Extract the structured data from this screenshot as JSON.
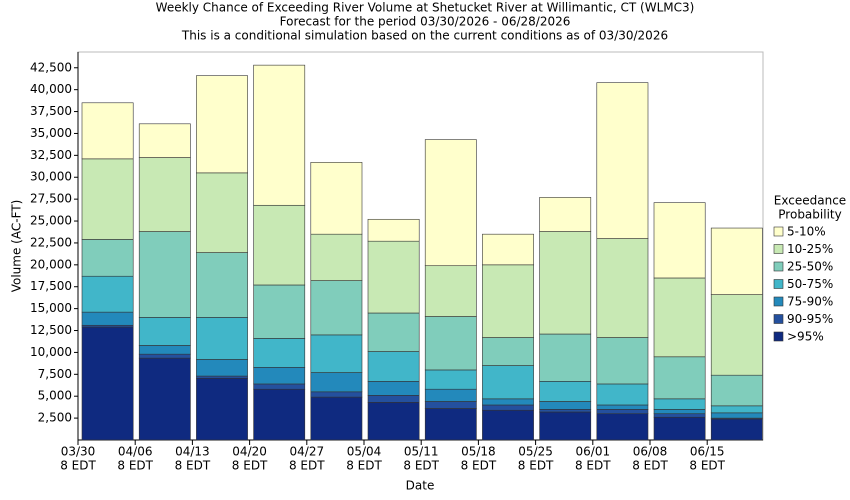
{
  "chart_data": {
    "type": "stacked-bar",
    "title": "Weekly Chance of Exceeding River Volume at Shetucket River at Willimantic, CT (WLMC3)",
    "subtitle": [
      "Forecast for the period 03/30/2026 - 06/28/2026",
      "This is a conditional simulation based on the current conditions as of 03/30/2026"
    ],
    "x_label": "Date",
    "y_label": "Volume (AC-FT)",
    "categories": [
      null,
      null,
      null,
      null,
      null,
      null,
      null,
      null,
      null,
      null,
      null,
      null
    ],
    "xtick_labels": [
      [
        "03/30",
        "8 EDT"
      ],
      [
        "04/06",
        "8 EDT"
      ],
      [
        "04/13",
        "8 EDT"
      ],
      [
        "04/20",
        "8 EDT"
      ],
      [
        "04/27",
        "8 EDT"
      ],
      [
        "05/04",
        "8 EDT"
      ],
      [
        "05/11",
        "8 EDT"
      ],
      [
        "05/18",
        "8 EDT"
      ],
      [
        "05/25",
        "8 EDT"
      ],
      [
        "06/01",
        "8 EDT"
      ],
      [
        "06/08",
        "8 EDT"
      ],
      [
        "06/15",
        "8 EDT"
      ]
    ],
    "legend_title": [
      "Exceedance",
      "Probability"
    ],
    "series": [
      {
        "name": ">95%",
        "color": "#0f2a80",
        "values": [
          12900,
          9350,
          7050,
          5800,
          4900,
          4300,
          3600,
          3400,
          3200,
          3000,
          2600,
          2400
        ]
      },
      {
        "name": "90-95%",
        "color": "#24509e",
        "values": [
          200,
          450,
          250,
          600,
          600,
          800,
          800,
          600,
          300,
          500,
          400,
          100
        ]
      },
      {
        "name": "75-90%",
        "color": "#2389bb",
        "values": [
          1500,
          1000,
          1900,
          1900,
          2200,
          1600,
          1400,
          700,
          900,
          500,
          500,
          600
        ]
      },
      {
        "name": "50-75%",
        "color": "#41b6c9",
        "values": [
          4100,
          3200,
          4800,
          3300,
          4300,
          3400,
          2200,
          3800,
          2300,
          2400,
          1200,
          800
        ]
      },
      {
        "name": "25-50%",
        "color": "#80cdbb",
        "values": [
          4200,
          9800,
          7400,
          6100,
          6200,
          4400,
          6100,
          3200,
          5400,
          5300,
          4800,
          3500
        ]
      },
      {
        "name": "10-25%",
        "color": "#c8e9b4",
        "values": [
          9200,
          8450,
          9100,
          9100,
          5300,
          8200,
          5800,
          8300,
          11700,
          11300,
          9000,
          9200
        ]
      },
      {
        "name": "5-10%",
        "color": "#ffffcc",
        "values": [
          6400,
          3850,
          11100,
          16000,
          8200,
          2500,
          14400,
          3500,
          3900,
          17800,
          8600,
          7600
        ]
      }
    ],
    "ylim": [
      0,
      44300
    ],
    "yticks": [
      {
        "value": 2500,
        "label": "2,500"
      },
      {
        "value": 5000,
        "label": "5,000"
      },
      {
        "value": 7500,
        "label": "7,500"
      },
      {
        "value": 10000,
        "label": "10,000"
      },
      {
        "value": 12500,
        "label": "12,500"
      },
      {
        "value": 15000,
        "label": "15,000"
      },
      {
        "value": 17500,
        "label": "17,500"
      },
      {
        "value": 20000,
        "label": "20,000"
      },
      {
        "value": 22500,
        "label": "22,500"
      },
      {
        "value": 25000,
        "label": "25,000"
      },
      {
        "value": 27500,
        "label": "27,500"
      },
      {
        "value": 30000,
        "label": "30,000"
      },
      {
        "value": 32500,
        "label": "32,500"
      },
      {
        "value": 35000,
        "label": "35,000"
      },
      {
        "value": 37500,
        "label": "37,500"
      },
      {
        "value": 40000,
        "label": "40,000"
      },
      {
        "value": 42500,
        "label": "42,500"
      }
    ],
    "grid": false
  }
}
